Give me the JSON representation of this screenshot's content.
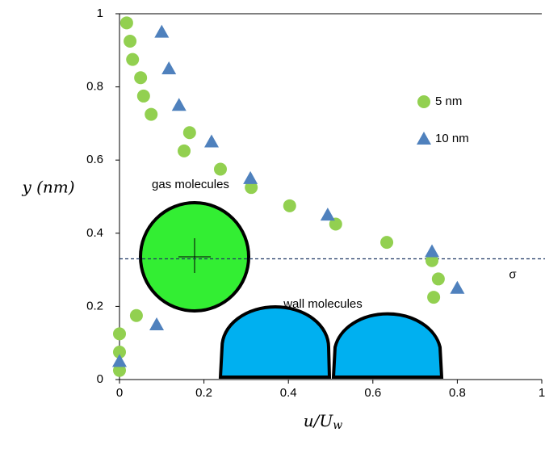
{
  "chart_data": {
    "type": "scatter",
    "x_label": "u/U",
    "x_label_sub": "w",
    "y_label": "y (nm)",
    "xlim": [
      0,
      1
    ],
    "ylim": [
      0,
      1
    ],
    "xticks": [
      0,
      0.2,
      0.4,
      0.6,
      0.8,
      1
    ],
    "yticks": [
      0,
      0.2,
      0.4,
      0.6,
      0.8,
      1
    ],
    "series": [
      {
        "name": "5 nm",
        "color": "#92d050",
        "marker": "circle",
        "x": [
          0.017,
          0.025,
          0.031,
          0.05,
          0.057,
          0.075,
          0.166,
          0.153,
          0.239,
          0.312,
          0.403,
          0.512,
          0.633,
          0.74,
          0.755,
          0.744,
          0.04,
          0,
          0,
          0
        ],
        "values": [
          0.975,
          0.925,
          0.875,
          0.825,
          0.775,
          0.725,
          0.675,
          0.625,
          0.575,
          0.525,
          0.475,
          0.425,
          0.375,
          0.325,
          0.275,
          0.225,
          0.175,
          0.125,
          0.075,
          0.025
        ]
      },
      {
        "name": "10 nm",
        "color": "#4f81bd",
        "marker": "triangle",
        "x": [
          0.1,
          0.117,
          0.141,
          0.218,
          0.31,
          0.493,
          0.74,
          0.8,
          0.088,
          0
        ],
        "values": [
          0.95,
          0.85,
          0.75,
          0.65,
          0.55,
          0.45,
          0.35,
          0.25,
          0.15,
          0.05
        ]
      }
    ],
    "hline": {
      "value": 0.33,
      "label": "σ",
      "color": "#1f3864"
    },
    "annotations": [
      "gas molecules",
      "wall molecules"
    ]
  }
}
